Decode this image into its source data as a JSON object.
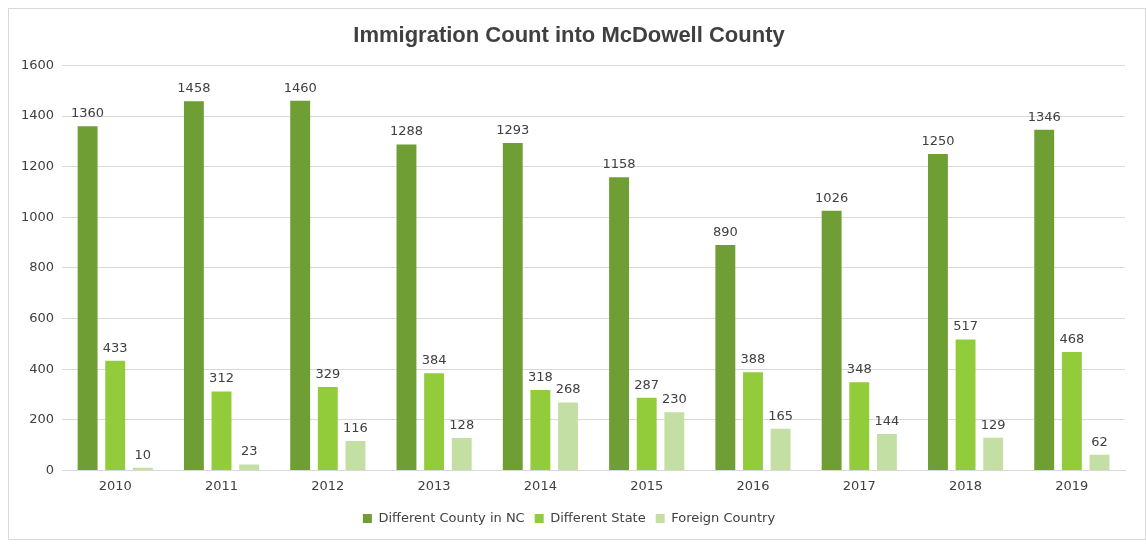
{
  "chart_data": {
    "type": "bar",
    "title": "Immigration Count into McDowell County",
    "categories": [
      "2010",
      "2011",
      "2012",
      "2013",
      "2014",
      "2015",
      "2016",
      "2017",
      "2018",
      "2019"
    ],
    "series": [
      {
        "name": "Different County in NC",
        "color": "#6f9e35",
        "values": [
          1360,
          1458,
          1460,
          1288,
          1293,
          1158,
          890,
          1026,
          1250,
          1346
        ]
      },
      {
        "name": "Different State",
        "color": "#92cc3a",
        "values": [
          433,
          312,
          329,
          384,
          318,
          287,
          388,
          348,
          517,
          468
        ]
      },
      {
        "name": "Foreign Country",
        "color": "#c4dfa3",
        "values": [
          10,
          23,
          116,
          128,
          268,
          230,
          165,
          144,
          129,
          62
        ]
      }
    ],
    "ylim": [
      0,
      1600
    ],
    "yticks": [
      0,
      200,
      400,
      600,
      800,
      1000,
      1200,
      1400,
      1600
    ],
    "grid": "y",
    "legend": "bottom",
    "data_labels": true
  }
}
